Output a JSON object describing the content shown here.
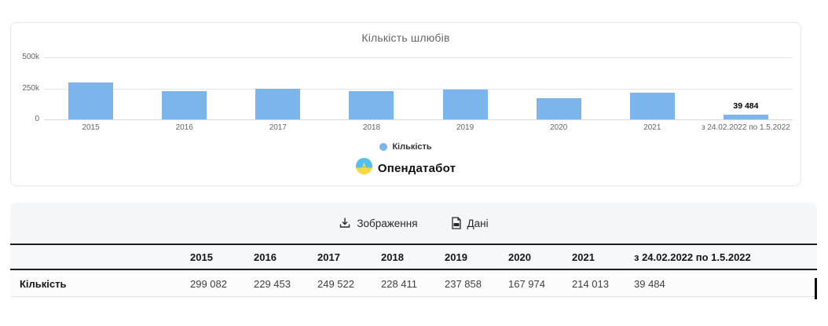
{
  "chart": {
    "title": "Кількість шлюбів",
    "legend_label": "Кількість",
    "logo_text": "Опендатабот",
    "bar_color": "#7cb5ec",
    "y_ticks": [
      "500k",
      "250k",
      "0"
    ]
  },
  "chart_data": {
    "type": "bar",
    "title": "Кількість шлюбів",
    "categories": [
      "2015",
      "2016",
      "2017",
      "2018",
      "2019",
      "2020",
      "2021",
      "з 24.02.2022 по 1.5.2022"
    ],
    "series": [
      {
        "name": "Кількість",
        "values": [
          299082,
          229453,
          249522,
          228411,
          237858,
          167974,
          214013,
          39484
        ]
      }
    ],
    "ylim": [
      0,
      500000
    ],
    "y_tick_labels": [
      "0",
      "250k",
      "500k"
    ],
    "grid": true,
    "legend_position": "bottom",
    "data_labels": [
      null,
      null,
      null,
      null,
      null,
      null,
      null,
      "39 484"
    ]
  },
  "toolbar": {
    "image_button": "Зображення",
    "data_button": "Дані"
  },
  "table": {
    "row_label": "Кількість",
    "headers": [
      "2015",
      "2016",
      "2017",
      "2018",
      "2019",
      "2020",
      "2021",
      "з 24.02.2022 по 1.5.2022"
    ],
    "values": [
      "299 082",
      "229 453",
      "249 522",
      "228 411",
      "237 858",
      "167 974",
      "214 013",
      "39 484"
    ]
  },
  "colors": {
    "bar": "#7cb5ec",
    "grid_line": "#e6e6e6",
    "logo_blue": "#55c0ee",
    "logo_yellow": "#ffd83d",
    "table_bg": "#f5f6f8"
  }
}
